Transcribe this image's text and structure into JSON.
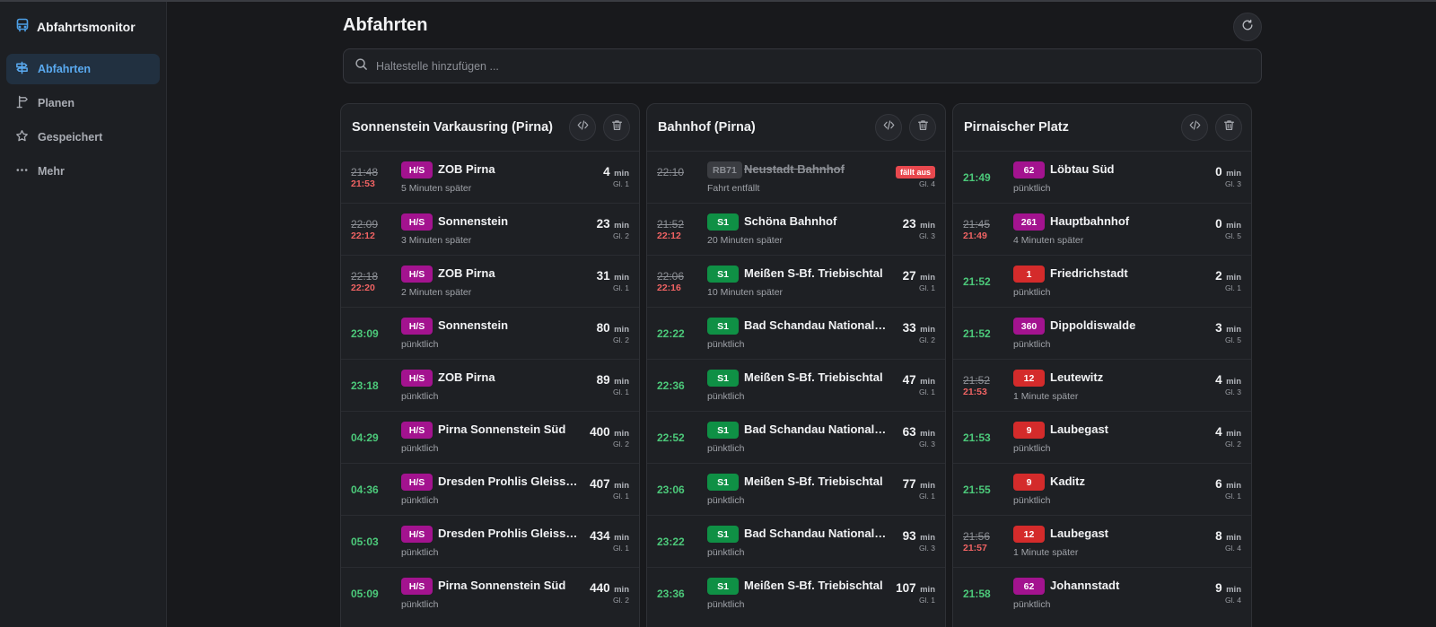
{
  "app": {
    "title": "Abfahrtsmonitor"
  },
  "nav": [
    {
      "label": "Abfahrten",
      "icon": "signpost-icon",
      "active": true
    },
    {
      "label": "Planen",
      "icon": "route-sign-icon",
      "active": false
    },
    {
      "label": "Gespeichert",
      "icon": "star-icon",
      "active": false
    },
    {
      "label": "Mehr",
      "icon": "more-dots-icon",
      "active": false
    }
  ],
  "page": {
    "title": "Abfahrten",
    "search_placeholder": "Haltestelle hinzufügen ..."
  },
  "colors": {
    "hs": "#a3138f",
    "s1": "#0f9045",
    "tram_red": "#d42b2b",
    "bus_purple": "#a3138f",
    "rb": "#3b3d42",
    "accent": "#5aaaf0",
    "ontime": "#4cc97a",
    "late": "#f06363"
  },
  "units": {
    "min": "min",
    "gl": "Gl."
  },
  "cards": [
    {
      "title": "Sonnenstein Varkausring (Pirna)",
      "rows": [
        {
          "planned": "21:48",
          "actual": "21:53",
          "line": "H/S",
          "color": "hs",
          "dest": "ZOB Pirna",
          "status": "5 Minuten später",
          "mins": "4",
          "gl": "Gl. 1"
        },
        {
          "planned": "22:09",
          "actual": "22:12",
          "line": "H/S",
          "color": "hs",
          "dest": "Sonnenstein",
          "status": "3 Minuten später",
          "mins": "23",
          "gl": "Gl. 2"
        },
        {
          "planned": "22:18",
          "actual": "22:20",
          "line": "H/S",
          "color": "hs",
          "dest": "ZOB Pirna",
          "status": "2 Minuten später",
          "mins": "31",
          "gl": "Gl. 1"
        },
        {
          "time": "23:09",
          "line": "H/S",
          "color": "hs",
          "dest": "Sonnenstein",
          "status": "pünktlich",
          "mins": "80",
          "gl": "Gl. 2"
        },
        {
          "time": "23:18",
          "line": "H/S",
          "color": "hs",
          "dest": "ZOB Pirna",
          "status": "pünktlich",
          "mins": "89",
          "gl": "Gl. 1"
        },
        {
          "time": "04:29",
          "line": "H/S",
          "color": "hs",
          "dest": "Pirna Sonnenstein Süd",
          "status": "pünktlich",
          "mins": "400",
          "gl": "Gl. 2"
        },
        {
          "time": "04:36",
          "line": "H/S",
          "color": "hs",
          "dest": "Dresden Prohlis Gleisschleife",
          "status": "pünktlich",
          "mins": "407",
          "gl": "Gl. 1"
        },
        {
          "time": "05:03",
          "line": "H/S",
          "color": "hs",
          "dest": "Dresden Prohlis Gleisschleife",
          "status": "pünktlich",
          "mins": "434",
          "gl": "Gl. 1"
        },
        {
          "time": "05:09",
          "line": "H/S",
          "color": "hs",
          "dest": "Pirna Sonnenstein Süd",
          "status": "pünktlich",
          "mins": "440",
          "gl": "Gl. 2"
        }
      ]
    },
    {
      "title": "Bahnhof (Pirna)",
      "rows": [
        {
          "planned": "22:10",
          "cancelled": true,
          "cancel_label": "fällt aus",
          "line": "RB71",
          "color": "rb",
          "dest": "Neustadt Bahnhof",
          "status": "Fahrt entfällt",
          "gl": "Gl. 4"
        },
        {
          "planned": "21:52",
          "actual": "22:12",
          "line": "S1",
          "color": "s1",
          "dest": "Schöna Bahnhof",
          "status": "20 Minuten später",
          "mins": "23",
          "gl": "Gl. 3"
        },
        {
          "planned": "22:06",
          "actual": "22:16",
          "line": "S1",
          "color": "s1",
          "dest": "Meißen S-Bf. Triebischtal",
          "status": "10 Minuten später",
          "mins": "27",
          "gl": "Gl. 1"
        },
        {
          "time": "22:22",
          "line": "S1",
          "color": "s1",
          "dest": "Bad Schandau Nationalparkbahnhof",
          "status": "pünktlich",
          "mins": "33",
          "gl": "Gl. 2"
        },
        {
          "time": "22:36",
          "line": "S1",
          "color": "s1",
          "dest": "Meißen S-Bf. Triebischtal",
          "status": "pünktlich",
          "mins": "47",
          "gl": "Gl. 1"
        },
        {
          "time": "22:52",
          "line": "S1",
          "color": "s1",
          "dest": "Bad Schandau Nationalparkbahnhof",
          "status": "pünktlich",
          "mins": "63",
          "gl": "Gl. 3"
        },
        {
          "time": "23:06",
          "line": "S1",
          "color": "s1",
          "dest": "Meißen S-Bf. Triebischtal",
          "status": "pünktlich",
          "mins": "77",
          "gl": "Gl. 1"
        },
        {
          "time": "23:22",
          "line": "S1",
          "color": "s1",
          "dest": "Bad Schandau Nationalparkbahnhof",
          "status": "pünktlich",
          "mins": "93",
          "gl": "Gl. 3"
        },
        {
          "time": "23:36",
          "line": "S1",
          "color": "s1",
          "dest": "Meißen S-Bf. Triebischtal",
          "status": "pünktlich",
          "mins": "107",
          "gl": "Gl. 1"
        }
      ]
    },
    {
      "title": "Pirnaischer Platz",
      "rows": [
        {
          "time": "21:49",
          "line": "62",
          "color": "bus_purple",
          "dest": "Löbtau Süd",
          "status": "pünktlich",
          "mins": "0",
          "gl": "Gl. 3"
        },
        {
          "planned": "21:45",
          "actual": "21:49",
          "line": "261",
          "color": "bus_purple",
          "dest": "Hauptbahnhof",
          "status": "4 Minuten später",
          "mins": "0",
          "gl": "Gl. 5"
        },
        {
          "time": "21:52",
          "line": "1",
          "color": "tram_red",
          "dest": "Friedrichstadt",
          "status": "pünktlich",
          "mins": "2",
          "gl": "Gl. 1"
        },
        {
          "time": "21:52",
          "line": "360",
          "color": "bus_purple",
          "dest": "Dippoldiswalde",
          "status": "pünktlich",
          "mins": "3",
          "gl": "Gl. 5"
        },
        {
          "planned": "21:52",
          "actual": "21:53",
          "line": "12",
          "color": "tram_red",
          "dest": "Leutewitz",
          "status": "1 Minute später",
          "mins": "4",
          "gl": "Gl. 3"
        },
        {
          "time": "21:53",
          "line": "9",
          "color": "tram_red",
          "dest": "Laubegast",
          "status": "pünktlich",
          "mins": "4",
          "gl": "Gl. 2"
        },
        {
          "time": "21:55",
          "line": "9",
          "color": "tram_red",
          "dest": "Kaditz",
          "status": "pünktlich",
          "mins": "6",
          "gl": "Gl. 1"
        },
        {
          "planned": "21:56",
          "actual": "21:57",
          "line": "12",
          "color": "tram_red",
          "dest": "Laubegast",
          "status": "1 Minute später",
          "mins": "8",
          "gl": "Gl. 4"
        },
        {
          "time": "21:58",
          "line": "62",
          "color": "bus_purple",
          "dest": "Johannstadt",
          "status": "pünktlich",
          "mins": "9",
          "gl": "Gl. 4"
        }
      ]
    }
  ]
}
